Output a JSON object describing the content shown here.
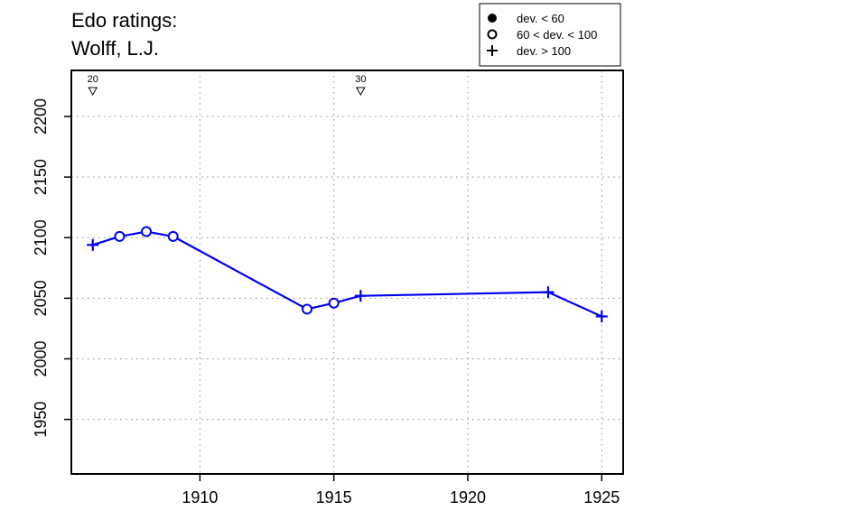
{
  "chart_data": {
    "type": "line",
    "title_lines": [
      "Edo ratings:",
      "Wolff, L.J."
    ],
    "xlabel": "",
    "ylabel": "",
    "xlim": [
      1905.2,
      1925.8
    ],
    "ylim": [
      1905,
      2238
    ],
    "x_ticks": [
      1910,
      1915,
      1920,
      1925
    ],
    "y_ticks": [
      1950,
      2000,
      2050,
      2100,
      2150,
      2200
    ],
    "x_tick_labels": [
      "1910",
      "1915",
      "1920",
      "1925"
    ],
    "y_tick_labels": [
      "1950",
      "2000",
      "2050",
      "2100",
      "2150",
      "2200"
    ],
    "grid": true,
    "line_color": "#0000ee",
    "points": [
      {
        "x": 1906,
        "y": 2094,
        "dev": "high"
      },
      {
        "x": 1907,
        "y": 2101,
        "dev": "mid"
      },
      {
        "x": 1908,
        "y": 2105,
        "dev": "mid"
      },
      {
        "x": 1909,
        "y": 2101,
        "dev": "mid"
      },
      {
        "x": 1914,
        "y": 2041,
        "dev": "mid"
      },
      {
        "x": 1915,
        "y": 2046,
        "dev": "mid"
      },
      {
        "x": 1916,
        "y": 2052,
        "dev": "high"
      },
      {
        "x": 1923,
        "y": 2055,
        "dev": "high"
      },
      {
        "x": 1925,
        "y": 2035,
        "dev": "high"
      }
    ],
    "age_markers": [
      {
        "x": 1906,
        "label": "20"
      },
      {
        "x": 1916,
        "label": "30"
      }
    ],
    "legend": {
      "position": "top-right",
      "entries": [
        {
          "symbol": "filled-circle",
          "label": "dev. < 60"
        },
        {
          "symbol": "open-circle",
          "label": "60 < dev. < 100"
        },
        {
          "symbol": "plus",
          "label": "dev. > 100"
        }
      ]
    }
  }
}
